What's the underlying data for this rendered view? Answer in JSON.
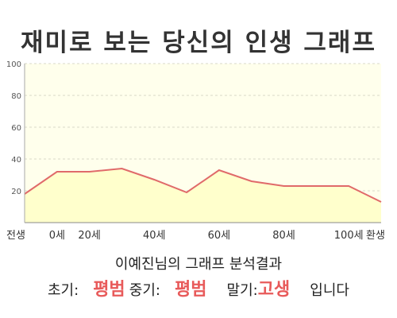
{
  "chart_data": {
    "type": "area",
    "title": "재미로 보는 당신의 인생 그래프",
    "x_tick_labels": [
      "전생",
      "0세",
      "20세",
      "40세",
      "60세",
      "80세",
      "100세",
      "환생"
    ],
    "x": [
      "전생",
      "0세",
      "20세",
      "30세",
      "40세",
      "50세",
      "60세",
      "70세",
      "80세",
      "90세",
      "100세",
      "환생"
    ],
    "values": [
      18,
      32,
      32,
      34,
      27,
      19,
      33,
      26,
      23,
      23,
      23,
      13
    ],
    "ylim": [
      0,
      100
    ],
    "y_ticks": [
      20,
      40,
      60,
      80,
      100
    ],
    "grid": true,
    "colors": {
      "line": "#e06a6a",
      "fill": "#ffffcc",
      "plot_bg": "#ffffec",
      "grid": "#d8d8c8"
    }
  },
  "result": {
    "summary": "이예진님의 그래프 분석결과",
    "early_label": "초기:",
    "early_value": "평범",
    "middle_label": "중기:",
    "middle_value": "평범",
    "late_label": "말기:",
    "late_value": "고생",
    "ending": "입니다"
  }
}
